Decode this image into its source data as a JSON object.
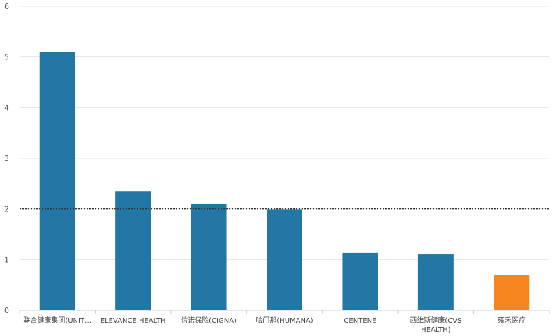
{
  "chart_data": {
    "type": "bar",
    "categories": [
      "联合健康集团(UNIT…",
      "ELEVANCE HEALTH",
      "信诺保险(CIGNA)",
      "哈门那(HUMANA)",
      "CENTENE",
      "西维斯健康(CVS HEALTH)",
      "雍禾医疗"
    ],
    "category_lines": [
      [
        "联合健康集团(UNIT…"
      ],
      [
        "ELEVANCE HEALTH"
      ],
      [
        "信诺保险(CIGNA)"
      ],
      [
        "哈门那(HUMANA)"
      ],
      [
        "CENTENE"
      ],
      [
        "西维斯健康(CVS",
        "HEALTH)"
      ],
      [
        "雍禾医疗"
      ]
    ],
    "values": [
      5.1,
      2.35,
      2.1,
      1.99,
      1.13,
      1.1,
      0.69
    ],
    "highlight_index": 6,
    "reference_line": 2,
    "ylim": [
      0,
      6
    ],
    "yticks": [
      0,
      1,
      2,
      3,
      4,
      5,
      6
    ],
    "title": "",
    "xlabel": "",
    "ylabel": "",
    "grid": true,
    "colors": {
      "bar": "#2277a4",
      "highlight": "#f5861f",
      "grid": "#e6e6e6",
      "reference": "#333333",
      "axis": "#cccccc"
    }
  }
}
